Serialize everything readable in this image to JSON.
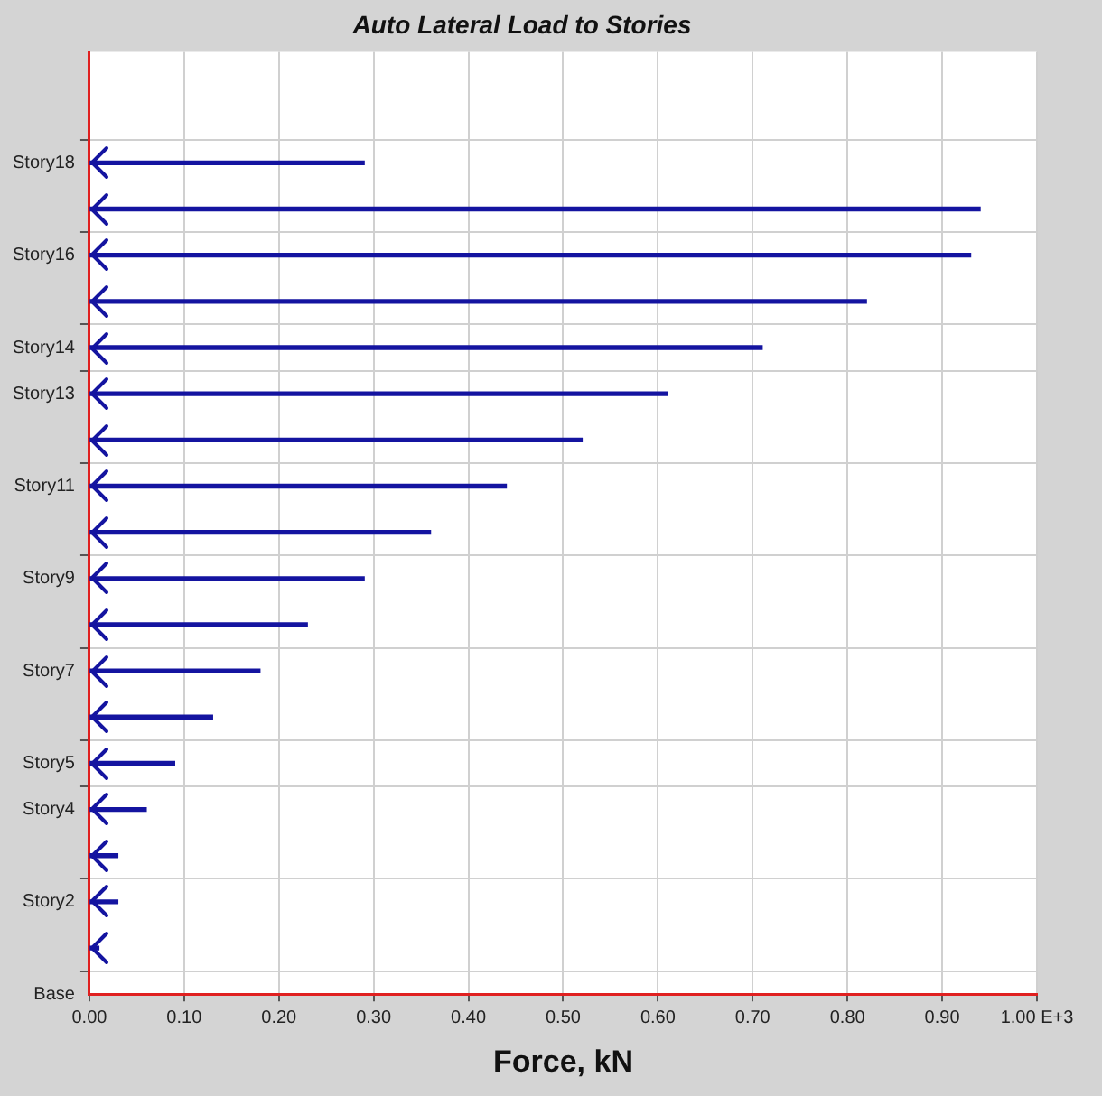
{
  "chart_data": {
    "type": "bar",
    "orientation": "horizontal",
    "title": "Auto Lateral Load to Stories",
    "xlabel": "Force, kN",
    "categories": [
      "Story18",
      null,
      "Story16",
      null,
      "Story14",
      "Story13",
      null,
      "Story11",
      null,
      "Story9",
      null,
      "Story7",
      null,
      "Story5",
      "Story4",
      null,
      "Story2",
      null,
      "Base"
    ],
    "values": [
      0.29,
      0.94,
      0.93,
      0.82,
      0.71,
      0.61,
      0.52,
      0.44,
      0.36,
      0.29,
      0.23,
      0.18,
      0.13,
      0.09,
      0.06,
      0.03,
      0.03,
      0.01,
      null
    ],
    "color": "#1414a0",
    "xlim": [
      0,
      1
    ],
    "xticks": [
      {
        "value": 0,
        "label": "0.00"
      },
      {
        "value": 0.1,
        "label": "0.10"
      },
      {
        "value": 0.2,
        "label": "0.20"
      },
      {
        "value": 0.3,
        "label": "0.30"
      },
      {
        "value": 0.4,
        "label": "0.40"
      },
      {
        "value": 0.5,
        "label": "0.50"
      },
      {
        "value": 0.6,
        "label": "0.60"
      },
      {
        "value": 0.7,
        "label": "0.70"
      },
      {
        "value": 0.8,
        "label": "0.80"
      },
      {
        "value": 0.9,
        "label": "0.90"
      },
      {
        "value": 1,
        "label": "1.00 E+3"
      }
    ],
    "grid": true
  }
}
